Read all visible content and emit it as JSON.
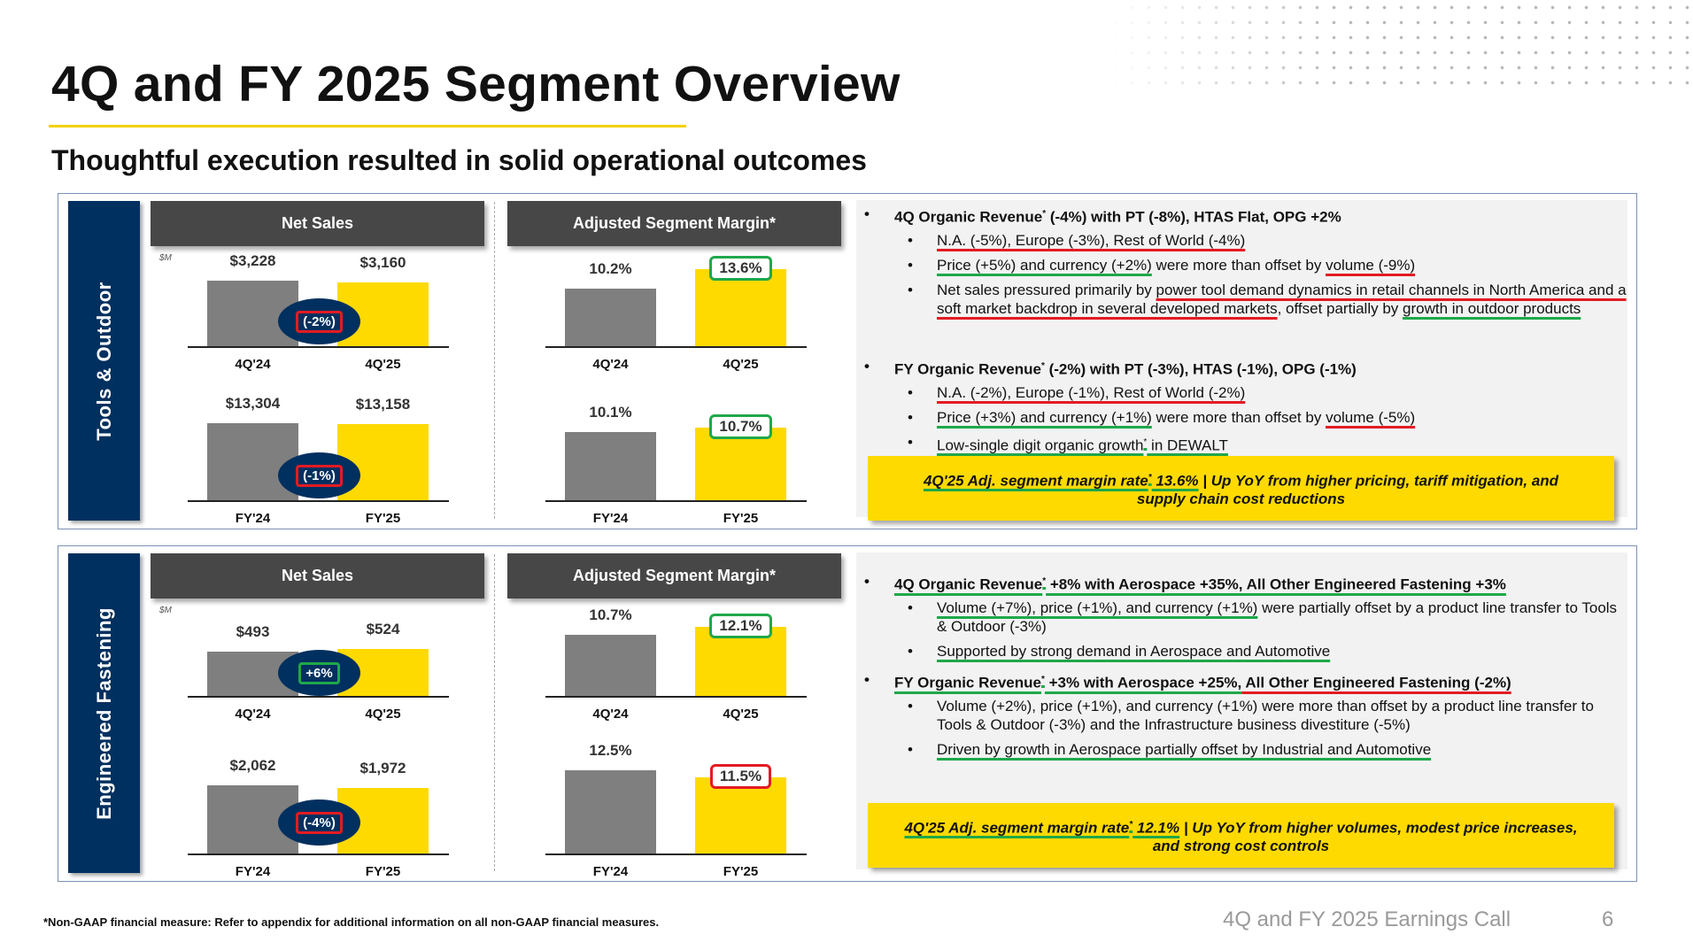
{
  "title": "4Q and FY 2025 Segment Overview",
  "subtitle": "Thoughtful execution resulted in solid operational outcomes",
  "colors": {
    "navy": "#00305f",
    "yellow": "#ffda00",
    "gray_bar": "#7f7f7f",
    "header": "#474747",
    "red": "#e31b23",
    "green": "#1fa84a"
  },
  "segments": [
    {
      "name": "Tools & Outdoor",
      "net_sales_header": "Net Sales",
      "margin_header": "Adjusted Segment Margin*",
      "unit": "$M",
      "charts": {
        "net_sales_4q": {
          "categories": [
            "4Q'24",
            "4Q'25"
          ],
          "values": [
            3228,
            3160
          ],
          "labels": [
            "$3,228",
            "$3,160"
          ],
          "change": "(-2%)",
          "change_color": "red"
        },
        "net_sales_fy": {
          "categories": [
            "FY'24",
            "FY'25"
          ],
          "values": [
            13304,
            13158
          ],
          "labels": [
            "$13,304",
            "$13,158"
          ],
          "change": "(-1%)",
          "change_color": "red"
        },
        "margin_4q": {
          "categories": [
            "4Q'24",
            "4Q'25"
          ],
          "values": [
            10.2,
            13.6
          ],
          "labels": [
            "10.2%",
            "13.6%"
          ],
          "highlight_color": "green"
        },
        "margin_fy": {
          "categories": [
            "FY'24",
            "FY'25"
          ],
          "values": [
            10.1,
            10.7
          ],
          "labels": [
            "10.1%",
            "10.7%"
          ],
          "highlight_color": "green"
        }
      },
      "groups": [
        {
          "heading": [
            {
              "t": "4Q Organic Revenue"
            },
            {
              "t": "*",
              "sup": true
            },
            {
              "t": " (-4%) with PT (-8%), HTAS Flat, OPG +2%"
            }
          ],
          "items": [
            [
              {
                "t": "N.A. (-5%), Europe (-3%), Rest of World (-4%)",
                "u": "r"
              }
            ],
            [
              {
                "t": "Price (+5%) and currency (+2%)",
                "u": "g"
              },
              {
                "t": " were more than offset by "
              },
              {
                "t": "volume (-9%)",
                "u": "r"
              }
            ],
            [
              {
                "t": "Net sales pressured primarily by "
              },
              {
                "t": "power tool demand dynamics in retail channels in North America and a soft market backdrop in several developed markets",
                "u": "r"
              },
              {
                "t": ", offset partially by "
              },
              {
                "t": "growth in outdoor products",
                "u": "g"
              }
            ]
          ]
        },
        {
          "heading": [
            {
              "t": "FY Organic Revenue"
            },
            {
              "t": "*",
              "sup": true
            },
            {
              "t": " (-2%) with PT (-3%), HTAS (-1%), OPG (-1%)"
            }
          ],
          "items": [
            [
              {
                "t": "N.A. (-2%), Europe (-1%), Rest of World (-2%)",
                "u": "r"
              }
            ],
            [
              {
                "t": "Price (+3%) and currency (+1%)",
                "u": "g"
              },
              {
                "t": " were more than offset by "
              },
              {
                "t": "volume (-5%)",
                "u": "r"
              }
            ],
            [
              {
                "t": "Low-single digit organic growth",
                "u": "g"
              },
              {
                "t": "*",
                "sup": true,
                "u": "g"
              },
              {
                "t": " in DEWALT",
                "u": "g"
              }
            ]
          ]
        }
      ],
      "callout": [
        {
          "t": "4Q'25 Adj. segment margin rate",
          "u": "g"
        },
        {
          "t": "*",
          "sup": true,
          "u": "g"
        },
        {
          "t": " 13.6%",
          "u": "g"
        },
        {
          "t": " | Up YoY from higher pricing, tariff mitigation, and supply chain cost reductions"
        }
      ]
    },
    {
      "name": "Engineered Fastening",
      "net_sales_header": "Net Sales",
      "margin_header": "Adjusted Segment Margin*",
      "unit": "$M",
      "charts": {
        "net_sales_4q": {
          "categories": [
            "4Q'24",
            "4Q'25"
          ],
          "values": [
            493,
            524
          ],
          "labels": [
            "$493",
            "$524"
          ],
          "change": "+6%",
          "change_color": "green"
        },
        "net_sales_fy": {
          "categories": [
            "FY'24",
            "FY'25"
          ],
          "values": [
            2062,
            1972
          ],
          "labels": [
            "$2,062",
            "$1,972"
          ],
          "change": "(-4%)",
          "change_color": "red"
        },
        "margin_4q": {
          "categories": [
            "4Q'24",
            "4Q'25"
          ],
          "values": [
            10.7,
            12.1
          ],
          "labels": [
            "10.7%",
            "12.1%"
          ],
          "highlight_color": "green"
        },
        "margin_fy": {
          "categories": [
            "FY'24",
            "FY'25"
          ],
          "values": [
            12.5,
            11.5
          ],
          "labels": [
            "12.5%",
            "11.5%"
          ],
          "highlight_color": "red"
        }
      },
      "groups": [
        {
          "heading": [
            {
              "t": "4Q Organic Revenue",
              "u": "g"
            },
            {
              "t": "*",
              "sup": true,
              "u": "g"
            },
            {
              "t": " +8% with Aerospace +35%, All Other Engineered Fastening +3%",
              "u": "g"
            }
          ],
          "items": [
            [
              {
                "t": "Volume (+7%), price (+1%), and currency (+1%)",
                "u": "g"
              },
              {
                "t": " were partially offset by a product line transfer to Tools & Outdoor (-3%)"
              }
            ],
            [
              {
                "t": "Supported by strong demand in Aerospace and Automotive ",
                "u": "g"
              }
            ]
          ]
        },
        {
          "heading": [
            {
              "t": "FY Organic Revenue",
              "u": "g"
            },
            {
              "t": "*",
              "sup": true,
              "u": "g"
            },
            {
              "t": " +3% with Aerospace +25%,",
              "u": "g"
            },
            {
              "t": " All Other Engineered Fastening (-2%)",
              "u": "r"
            }
          ],
          "items": [
            [
              {
                "t": "Volume (+2%), price (+1%), and currency (+1%) were more than offset by a product line transfer to Tools & Outdoor (-3%) and the Infrastructure business divestiture (-5%)"
              }
            ],
            [
              {
                "t": "Driven by growth in Aerospace partially offset by Industrial and Automotive",
                "u": "g"
              }
            ]
          ]
        }
      ],
      "callout": [
        {
          "t": "4Q'25 Adj. segment margin rate",
          "u": "g"
        },
        {
          "t": "*",
          "sup": true,
          "u": "g"
        },
        {
          "t": " 12.1%",
          "u": "g"
        },
        {
          "t": " | Up YoY from higher volumes, modest price increases, and strong cost controls"
        }
      ]
    }
  ],
  "footnote": "*Non-GAAP financial measure: Refer to appendix for additional information on all non-GAAP financial measures.",
  "footer_title": "4Q and FY 2025 Earnings Call",
  "page_number": "6"
}
